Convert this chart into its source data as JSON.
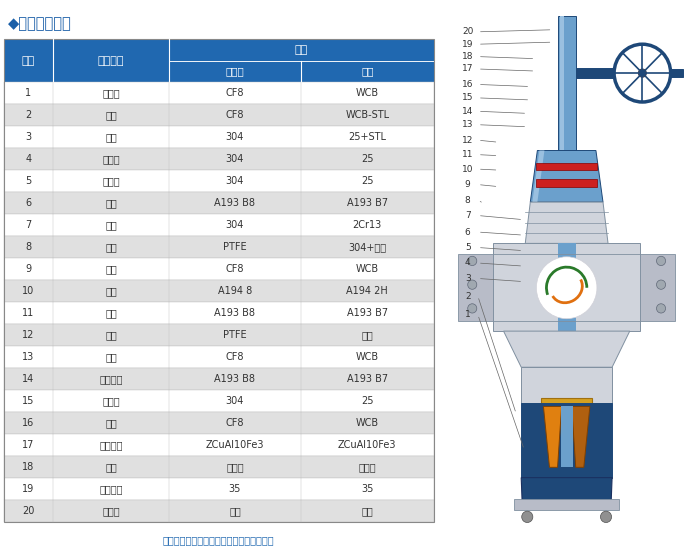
{
  "title": "◆主要零件材质",
  "title_color": "#1a5fa8",
  "header_bg": "#2068b0",
  "header_text_color": "#ffffff",
  "odd_row_bg": "#ffffff",
  "even_row_bg": "#e0e0e0",
  "border_color": "#c0c0c0",
  "footer_text": "更多材质选择及零部件搭配，请和询我公司",
  "footer_color": "#2068b0",
  "rows": [
    [
      "1",
      "连接盖",
      "CF8",
      "WCB"
    ],
    [
      "2",
      "阀体",
      "CF8",
      "WCB-STL"
    ],
    [
      "3",
      "阀瓣",
      "304",
      "25+STL"
    ],
    [
      "4",
      "对开环",
      "304",
      "25"
    ],
    [
      "5",
      "阀瓣盖",
      "304",
      "25"
    ],
    [
      "6",
      "联钉",
      "A193 B8",
      "A193 B7"
    ],
    [
      "7",
      "阀杆",
      "304",
      "2Cr13"
    ],
    [
      "8",
      "垫片",
      "PTFE",
      "304+石墨"
    ],
    [
      "9",
      "阀盖",
      "CF8",
      "WCB"
    ],
    [
      "10",
      "螺母",
      "A194 8",
      "A194 2H"
    ],
    [
      "11",
      "螺栓",
      "A193 B8",
      "A193 B7"
    ],
    [
      "12",
      "填料",
      "PTFE",
      "石墨"
    ],
    [
      "13",
      "压盖",
      "CF8",
      "WCB"
    ],
    [
      "14",
      "吸环螺钉",
      "A193 B8",
      "A193 B7"
    ],
    [
      "15",
      "防转板",
      "304",
      "25"
    ],
    [
      "16",
      "支架",
      "CF8",
      "WCB"
    ],
    [
      "17",
      "阀杆螺母",
      "ZCuAl10Fe3",
      "ZCuAl10Fe3"
    ],
    [
      "18",
      "轴承",
      "轴承钒",
      "轴承钒"
    ],
    [
      "19",
      "轴承压盖",
      "35",
      "35"
    ],
    [
      "20",
      "齿轮筱",
      "组件",
      "组件"
    ]
  ]
}
